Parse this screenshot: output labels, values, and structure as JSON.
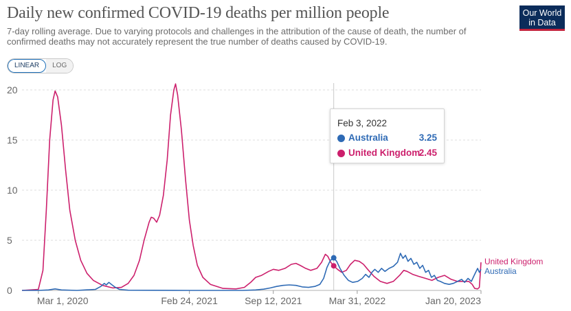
{
  "header": {
    "title": "Daily new confirmed COVID-19 deaths per million people",
    "subtitle": "7-day rolling average. Due to varying protocols and challenges in the attribution of the cause of death, the number of confirmed deaths may not accurately represent the true number of deaths caused by COVID-19."
  },
  "logo": {
    "line1": "Our World",
    "line2": "in Data",
    "color": "#0b2c5a",
    "accent": "#c4233c"
  },
  "scale_toggle": {
    "linear_label": "LINEAR",
    "log_label": "LOG",
    "selected": "LINEAR"
  },
  "tooltip": {
    "date": "Feb 3, 2022",
    "rows": [
      {
        "name": "Australia",
        "value": "3.25",
        "color": "#2e6ab5"
      },
      {
        "name": "United Kingdom",
        "value": "2.45",
        "color": "#cc1f6c"
      }
    ]
  },
  "chart_data": {
    "type": "line",
    "ylim": [
      0,
      20
    ],
    "y_ticks": [
      0,
      5,
      10,
      15,
      20
    ],
    "xlim": [
      "2020-01-22",
      "2023-01-20"
    ],
    "x_ticks": [
      {
        "label": "Mar 1, 2020",
        "date": "2020-03-01"
      },
      {
        "label": "Feb 24, 2021",
        "date": "2021-02-24"
      },
      {
        "label": "Sep 12, 2021",
        "date": "2021-09-12"
      },
      {
        "label": "Mar 31, 2022",
        "date": "2022-03-31"
      },
      {
        "label": "Jan 20, 2023",
        "date": "2023-01-20"
      }
    ],
    "grid": true,
    "hover_date": "2022-02-03",
    "series": [
      {
        "name": "United Kingdom",
        "color": "#cc1f6c",
        "points": [
          [
            "2020-01-22",
            0
          ],
          [
            "2020-03-01",
            0.1
          ],
          [
            "2020-03-12",
            2
          ],
          [
            "2020-03-20",
            8
          ],
          [
            "2020-03-28",
            15
          ],
          [
            "2020-04-05",
            19
          ],
          [
            "2020-04-10",
            19.9
          ],
          [
            "2020-04-16",
            19.3
          ],
          [
            "2020-04-25",
            16.5
          ],
          [
            "2020-05-05",
            12
          ],
          [
            "2020-05-15",
            8
          ],
          [
            "2020-05-28",
            5
          ],
          [
            "2020-06-10",
            3
          ],
          [
            "2020-06-25",
            1.7
          ],
          [
            "2020-07-10",
            1
          ],
          [
            "2020-08-01",
            0.5
          ],
          [
            "2020-08-25",
            0.25
          ],
          [
            "2020-09-15",
            0.3
          ],
          [
            "2020-10-01",
            0.7
          ],
          [
            "2020-10-15",
            1.5
          ],
          [
            "2020-10-28",
            3
          ],
          [
            "2020-11-08",
            5
          ],
          [
            "2020-11-20",
            6.8
          ],
          [
            "2020-11-25",
            7.3
          ],
          [
            "2020-12-01",
            7.2
          ],
          [
            "2020-12-08",
            6.8
          ],
          [
            "2020-12-15",
            7.5
          ],
          [
            "2020-12-24",
            9.5
          ],
          [
            "2021-01-02",
            13
          ],
          [
            "2021-01-10",
            17.5
          ],
          [
            "2021-01-18",
            20
          ],
          [
            "2021-01-22",
            20.6
          ],
          [
            "2021-01-27",
            19.5
          ],
          [
            "2021-02-05",
            16
          ],
          [
            "2021-02-15",
            11
          ],
          [
            "2021-02-24",
            7
          ],
          [
            "2021-03-05",
            4.5
          ],
          [
            "2021-03-15",
            2.5
          ],
          [
            "2021-03-28",
            1.3
          ],
          [
            "2021-04-15",
            0.6
          ],
          [
            "2021-05-15",
            0.2
          ],
          [
            "2021-06-15",
            0.15
          ],
          [
            "2021-07-05",
            0.3
          ],
          [
            "2021-07-20",
            0.8
          ],
          [
            "2021-08-01",
            1.3
          ],
          [
            "2021-08-15",
            1.5
          ],
          [
            "2021-09-01",
            1.9
          ],
          [
            "2021-09-12",
            2.1
          ],
          [
            "2021-09-25",
            2
          ],
          [
            "2021-10-10",
            2.2
          ],
          [
            "2021-10-25",
            2.6
          ],
          [
            "2021-11-05",
            2.7
          ],
          [
            "2021-11-15",
            2.5
          ],
          [
            "2021-11-28",
            2.2
          ],
          [
            "2021-12-10",
            2
          ],
          [
            "2021-12-25",
            2.2
          ],
          [
            "2022-01-05",
            2.8
          ],
          [
            "2022-01-14",
            3.6
          ],
          [
            "2022-01-20",
            3.4
          ],
          [
            "2022-01-27",
            2.8
          ],
          [
            "2022-02-03",
            2.45
          ],
          [
            "2022-02-12",
            2.1
          ],
          [
            "2022-02-22",
            1.8
          ],
          [
            "2022-03-05",
            2
          ],
          [
            "2022-03-15",
            2.6
          ],
          [
            "2022-03-25",
            3
          ],
          [
            "2022-04-05",
            2.9
          ],
          [
            "2022-04-15",
            2.6
          ],
          [
            "2022-04-25",
            2.1
          ],
          [
            "2022-05-10",
            1.4
          ],
          [
            "2022-05-25",
            0.9
          ],
          [
            "2022-06-10",
            0.7
          ],
          [
            "2022-06-25",
            0.9
          ],
          [
            "2022-07-10",
            1.5
          ],
          [
            "2022-07-20",
            2
          ],
          [
            "2022-07-28",
            1.9
          ],
          [
            "2022-08-10",
            1.6
          ],
          [
            "2022-08-25",
            1.4
          ],
          [
            "2022-09-10",
            1.2
          ],
          [
            "2022-09-25",
            1
          ],
          [
            "2022-10-10",
            1.3
          ],
          [
            "2022-10-25",
            1.5
          ],
          [
            "2022-11-10",
            1.1
          ],
          [
            "2022-11-25",
            0.9
          ],
          [
            "2022-12-10",
            0.9
          ],
          [
            "2022-12-22",
            0.9
          ],
          [
            "2022-12-30",
            0.6
          ],
          [
            "2023-01-05",
            0.2
          ],
          [
            "2023-01-12",
            0.15
          ],
          [
            "2023-01-16",
            0.3
          ],
          [
            "2023-01-18",
            1.5
          ],
          [
            "2023-01-20",
            2.8
          ]
        ]
      },
      {
        "name": "Australia",
        "color": "#2e6ab5",
        "points": [
          [
            "2020-01-22",
            0
          ],
          [
            "2020-03-01",
            0
          ],
          [
            "2020-03-25",
            0.05
          ],
          [
            "2020-04-10",
            0.15
          ],
          [
            "2020-04-25",
            0.05
          ],
          [
            "2020-06-01",
            0
          ],
          [
            "2020-07-15",
            0.1
          ],
          [
            "2020-07-28",
            0.4
          ],
          [
            "2020-08-05",
            0.7
          ],
          [
            "2020-08-10",
            0.55
          ],
          [
            "2020-08-16",
            0.8
          ],
          [
            "2020-08-22",
            0.6
          ],
          [
            "2020-08-30",
            0.35
          ],
          [
            "2020-09-10",
            0.1
          ],
          [
            "2020-10-01",
            0.02
          ],
          [
            "2021-02-24",
            0
          ],
          [
            "2021-07-01",
            0
          ],
          [
            "2021-08-01",
            0.05
          ],
          [
            "2021-08-20",
            0.12
          ],
          [
            "2021-09-05",
            0.25
          ],
          [
            "2021-09-20",
            0.4
          ],
          [
            "2021-10-05",
            0.5
          ],
          [
            "2021-10-20",
            0.55
          ],
          [
            "2021-11-05",
            0.5
          ],
          [
            "2021-11-20",
            0.35
          ],
          [
            "2021-12-05",
            0.3
          ],
          [
            "2021-12-20",
            0.4
          ],
          [
            "2022-01-01",
            0.6
          ],
          [
            "2022-01-10",
            1.2
          ],
          [
            "2022-01-18",
            2.3
          ],
          [
            "2022-01-26",
            3
          ],
          [
            "2022-02-03",
            3.25
          ],
          [
            "2022-02-10",
            2.9
          ],
          [
            "2022-02-18",
            2.2
          ],
          [
            "2022-02-28",
            1.5
          ],
          [
            "2022-03-10",
            1
          ],
          [
            "2022-03-20",
            0.8
          ],
          [
            "2022-04-01",
            0.9
          ],
          [
            "2022-04-12",
            1.2
          ],
          [
            "2022-04-20",
            1.6
          ],
          [
            "2022-04-28",
            1.3
          ],
          [
            "2022-05-05",
            1.8
          ],
          [
            "2022-05-12",
            2.1
          ],
          [
            "2022-05-20",
            1.8
          ],
          [
            "2022-05-28",
            2.2
          ],
          [
            "2022-06-05",
            1.9
          ],
          [
            "2022-06-15",
            2.2
          ],
          [
            "2022-06-25",
            2.4
          ],
          [
            "2022-07-05",
            2.8
          ],
          [
            "2022-07-12",
            3.7
          ],
          [
            "2022-07-18",
            3.2
          ],
          [
            "2022-07-24",
            3.5
          ],
          [
            "2022-07-30",
            2.9
          ],
          [
            "2022-08-06",
            3.2
          ],
          [
            "2022-08-13",
            2.6
          ],
          [
            "2022-08-20",
            2.8
          ],
          [
            "2022-08-27",
            2.2
          ],
          [
            "2022-09-03",
            2.5
          ],
          [
            "2022-09-10",
            1.8
          ],
          [
            "2022-09-17",
            2
          ],
          [
            "2022-09-24",
            1.3
          ],
          [
            "2022-10-01",
            1.5
          ],
          [
            "2022-10-08",
            1
          ],
          [
            "2022-10-15",
            0.9
          ],
          [
            "2022-10-25",
            0.7
          ],
          [
            "2022-11-05",
            0.6
          ],
          [
            "2022-11-15",
            0.7
          ],
          [
            "2022-11-25",
            0.9
          ],
          [
            "2022-12-05",
            1.1
          ],
          [
            "2022-12-12",
            0.8
          ],
          [
            "2022-12-20",
            1.2
          ],
          [
            "2022-12-28",
            0.9
          ],
          [
            "2023-01-05",
            1.6
          ],
          [
            "2023-01-12",
            2.2
          ],
          [
            "2023-01-16",
            1.8
          ],
          [
            "2023-01-20",
            2.1
          ]
        ]
      }
    ]
  }
}
